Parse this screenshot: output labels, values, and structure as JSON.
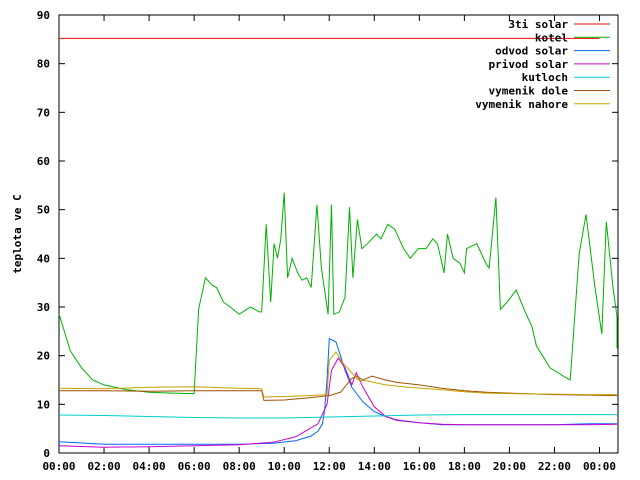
{
  "chart_data": {
    "type": "line",
    "title": "",
    "xlabel": "",
    "ylabel": "teplota ve C",
    "xlim": [
      0,
      24
    ],
    "ylim": [
      0,
      90
    ],
    "grid": false,
    "legend_position": "top-right",
    "x_ticks": [
      {
        "value": 0,
        "label": "00:00"
      },
      {
        "value": 2,
        "label": "02:00"
      },
      {
        "value": 4,
        "label": "04:00"
      },
      {
        "value": 6,
        "label": "06:00"
      },
      {
        "value": 8,
        "label": "08:00"
      },
      {
        "value": 10,
        "label": "10:00"
      },
      {
        "value": 12,
        "label": "12:00"
      },
      {
        "value": 14,
        "label": "14:00"
      },
      {
        "value": 16,
        "label": "16:00"
      },
      {
        "value": 18,
        "label": "18:00"
      },
      {
        "value": 20,
        "label": "20:00"
      },
      {
        "value": 22,
        "label": "22:00"
      },
      {
        "value": 24,
        "label": "00:00"
      }
    ],
    "y_ticks": [
      0,
      10,
      20,
      30,
      40,
      50,
      60,
      70,
      80,
      90
    ],
    "series": [
      {
        "name": "3ti solar",
        "color": "#ff0000",
        "points": [
          [
            0,
            85.2
          ],
          [
            24,
            85.2
          ]
        ]
      },
      {
        "name": "kotel",
        "color": "#00b000",
        "points": [
          [
            0,
            28.6
          ],
          [
            0.5,
            21
          ],
          [
            1,
            17.5
          ],
          [
            1.5,
            15
          ],
          [
            2,
            14
          ],
          [
            3,
            13
          ],
          [
            4,
            12.5
          ],
          [
            5,
            12.3
          ],
          [
            6.0,
            12.2
          ],
          [
            6.2,
            29.5
          ],
          [
            6.5,
            36
          ],
          [
            6.8,
            34.5
          ],
          [
            7.0,
            34
          ],
          [
            7.3,
            31
          ],
          [
            7.6,
            30
          ],
          [
            8.0,
            28.5
          ],
          [
            8.5,
            30
          ],
          [
            8.9,
            29
          ],
          [
            9.0,
            29
          ],
          [
            9.2,
            47
          ],
          [
            9.4,
            31
          ],
          [
            9.55,
            43
          ],
          [
            9.7,
            40
          ],
          [
            9.85,
            44
          ],
          [
            10.0,
            53.5
          ],
          [
            10.15,
            36
          ],
          [
            10.35,
            40
          ],
          [
            10.6,
            37
          ],
          [
            10.8,
            35.5
          ],
          [
            11.0,
            36
          ],
          [
            11.2,
            34
          ],
          [
            11.45,
            51
          ],
          [
            11.65,
            38
          ],
          [
            11.95,
            28.5
          ],
          [
            12.1,
            51
          ],
          [
            12.2,
            28.5
          ],
          [
            12.45,
            29
          ],
          [
            12.7,
            32
          ],
          [
            12.9,
            50.5
          ],
          [
            13.05,
            36
          ],
          [
            13.25,
            48
          ],
          [
            13.45,
            42
          ],
          [
            13.7,
            43
          ],
          [
            14.1,
            45
          ],
          [
            14.3,
            44
          ],
          [
            14.6,
            47
          ],
          [
            14.9,
            46
          ],
          [
            15.3,
            42
          ],
          [
            15.6,
            40
          ],
          [
            15.95,
            42
          ],
          [
            16.3,
            42
          ],
          [
            16.6,
            44
          ],
          [
            16.8,
            43
          ],
          [
            17.1,
            37
          ],
          [
            17.25,
            45
          ],
          [
            17.5,
            40
          ],
          [
            17.8,
            39
          ],
          [
            18.0,
            37
          ],
          [
            18.1,
            42
          ],
          [
            18.55,
            43
          ],
          [
            18.95,
            39
          ],
          [
            19.1,
            38
          ],
          [
            19.4,
            52.5
          ],
          [
            19.6,
            29.5
          ],
          [
            19.9,
            31
          ],
          [
            20.3,
            33.5
          ],
          [
            20.7,
            29
          ],
          [
            21.0,
            26
          ],
          [
            21.2,
            22
          ],
          [
            21.8,
            17.5
          ],
          [
            22.5,
            15.5
          ],
          [
            22.7,
            15
          ],
          [
            23.1,
            41
          ],
          [
            23.4,
            49
          ],
          [
            23.8,
            34
          ],
          [
            24.1,
            24.5
          ],
          [
            24.3,
            47.5
          ],
          [
            24.6,
            34
          ],
          [
            24.9,
            28
          ],
          [
            25.25,
            21.5
          ]
        ]
      },
      {
        "name": "odvod solar",
        "color": "#0066ff",
        "points": [
          [
            0,
            2.3
          ],
          [
            2,
            1.8
          ],
          [
            4,
            1.8
          ],
          [
            6,
            1.8
          ],
          [
            8,
            1.8
          ],
          [
            9.5,
            2
          ],
          [
            10.5,
            2.5
          ],
          [
            11.2,
            3.5
          ],
          [
            11.5,
            4.5
          ],
          [
            11.7,
            6
          ],
          [
            11.8,
            9
          ],
          [
            11.9,
            15
          ],
          [
            12.0,
            23.5
          ],
          [
            12.3,
            22.8
          ],
          [
            12.5,
            20
          ],
          [
            12.7,
            17
          ],
          [
            13.0,
            13.5
          ],
          [
            13.5,
            10.5
          ],
          [
            14.0,
            8.5
          ],
          [
            14.5,
            7.5
          ],
          [
            15.0,
            6.8
          ],
          [
            16.0,
            6.2
          ],
          [
            17.0,
            5.8
          ],
          [
            18.0,
            5.8
          ],
          [
            20.0,
            5.8
          ],
          [
            22.0,
            5.8
          ],
          [
            23.5,
            6.0
          ],
          [
            25.3,
            6.0
          ]
        ]
      },
      {
        "name": "privod solar",
        "color": "#cc00cc",
        "points": [
          [
            0,
            1.5
          ],
          [
            2,
            1.2
          ],
          [
            4,
            1.3
          ],
          [
            6,
            1.5
          ],
          [
            8,
            1.7
          ],
          [
            9.5,
            2.2
          ],
          [
            10.5,
            3.3
          ],
          [
            11.5,
            6
          ],
          [
            11.9,
            10
          ],
          [
            12.1,
            17
          ],
          [
            12.4,
            19.5
          ],
          [
            12.7,
            17.5
          ],
          [
            13.0,
            14
          ],
          [
            13.2,
            16.5
          ],
          [
            13.5,
            13.5
          ],
          [
            14.0,
            9.5
          ],
          [
            14.5,
            7.5
          ],
          [
            15.0,
            6.7
          ],
          [
            16.0,
            6.2
          ],
          [
            17.0,
            5.9
          ],
          [
            18.0,
            5.8
          ],
          [
            20.0,
            5.8
          ],
          [
            22.0,
            5.8
          ],
          [
            23.5,
            5.8
          ],
          [
            25.3,
            5.9
          ]
        ]
      },
      {
        "name": "kutloch",
        "color": "#00cccc",
        "points": [
          [
            0,
            7.8
          ],
          [
            2,
            7.7
          ],
          [
            4,
            7.5
          ],
          [
            6,
            7.3
          ],
          [
            8,
            7.2
          ],
          [
            10,
            7.2
          ],
          [
            12,
            7.4
          ],
          [
            14,
            7.6
          ],
          [
            16,
            7.8
          ],
          [
            18,
            7.9
          ],
          [
            20,
            7.9
          ],
          [
            22,
            7.9
          ],
          [
            25.3,
            7.9
          ]
        ]
      },
      {
        "name": "vymenik dole",
        "color": "#a05000",
        "points": [
          [
            0,
            12.8
          ],
          [
            2,
            12.8
          ],
          [
            4,
            12.7
          ],
          [
            6,
            12.8
          ],
          [
            8,
            12.8
          ],
          [
            9.0,
            12.8
          ],
          [
            9.1,
            10.8
          ],
          [
            10,
            10.9
          ],
          [
            11,
            11.3
          ],
          [
            12,
            11.8
          ],
          [
            12.5,
            12.5
          ],
          [
            13.0,
            15.3
          ],
          [
            13.2,
            15.8
          ],
          [
            13.5,
            15
          ],
          [
            13.9,
            15.8
          ],
          [
            14.5,
            15
          ],
          [
            15,
            14.5
          ],
          [
            16,
            14
          ],
          [
            17,
            13.3
          ],
          [
            18,
            12.8
          ],
          [
            19,
            12.5
          ],
          [
            20,
            12.3
          ],
          [
            22,
            12.0
          ],
          [
            23.5,
            11.9
          ],
          [
            25.3,
            11.8
          ]
        ]
      },
      {
        "name": "vymenik nahore",
        "color": "#c8a000",
        "points": [
          [
            0,
            13.3
          ],
          [
            2,
            13.2
          ],
          [
            4,
            13.5
          ],
          [
            6,
            13.6
          ],
          [
            8,
            13.3
          ],
          [
            9.0,
            13.2
          ],
          [
            9.1,
            11.5
          ],
          [
            10,
            11.6
          ],
          [
            11,
            11.8
          ],
          [
            11.9,
            12
          ],
          [
            12.0,
            19
          ],
          [
            12.3,
            20.8
          ],
          [
            12.6,
            18.5
          ],
          [
            13.0,
            16.5
          ],
          [
            13.3,
            15
          ],
          [
            13.7,
            14.8
          ],
          [
            14.5,
            14
          ],
          [
            15.5,
            13.5
          ],
          [
            17,
            13
          ],
          [
            18,
            12.6
          ],
          [
            19,
            12.3
          ],
          [
            20,
            12.2
          ],
          [
            22,
            12.1
          ],
          [
            23.5,
            12.0
          ],
          [
            25.3,
            12.0
          ]
        ]
      }
    ]
  }
}
